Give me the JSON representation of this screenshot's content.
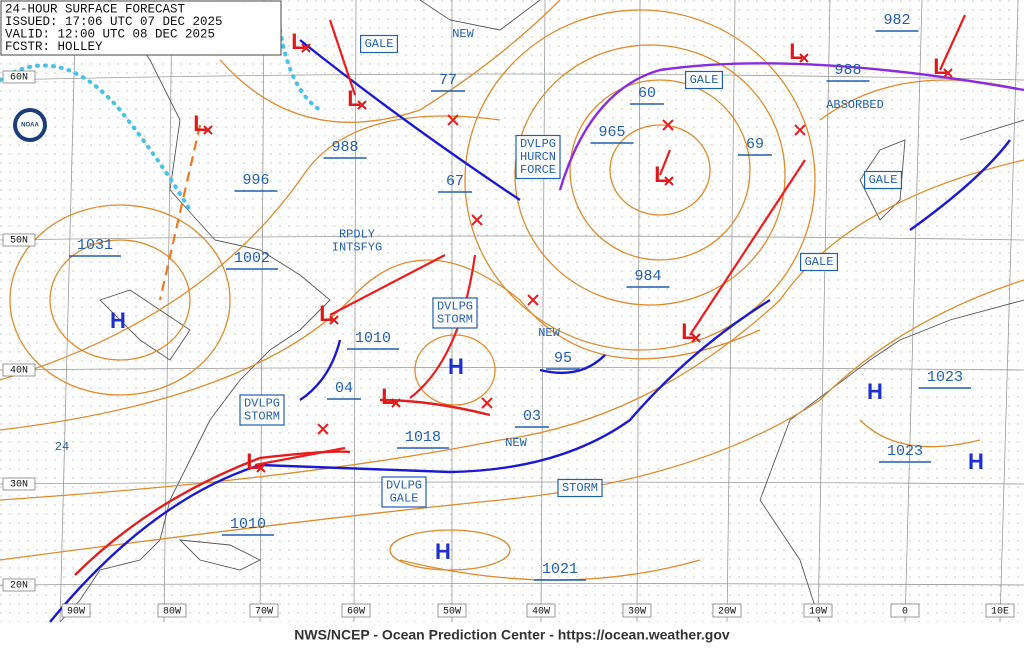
{
  "header": {
    "lines": [
      "24-HOUR SURFACE FORECAST",
      "ISSUED: 17:06 UTC 07 DEC 2025",
      "VALID: 12:00 UTC 08 DEC 2025",
      "FCSTR: HOLLEY"
    ]
  },
  "logo": "NOAA",
  "latitude_labels": [
    "60N",
    "50N",
    "40N",
    "30N",
    "20N"
  ],
  "longitude_labels": [
    "90W",
    "80W",
    "70W",
    "60W",
    "50W",
    "40W",
    "30W",
    "20W",
    "10W",
    "0",
    "10E"
  ],
  "pressure_labels": [
    "77",
    "988",
    "996",
    "1031",
    "1002",
    "67",
    "60",
    "965",
    "69",
    "984",
    "982",
    "988",
    "1010",
    "95",
    "04",
    "03",
    "1018",
    "1023",
    "1023",
    "1010",
    "1021"
  ],
  "boxed_labels": [
    [
      "GALE"
    ],
    [
      "GALE"
    ],
    [
      "DVLPG",
      "HURCN",
      "FORCE"
    ],
    [
      "GALE"
    ],
    [
      "GALE"
    ],
    [
      "DVLPG",
      "STORM"
    ],
    [
      "DVLPG",
      "STORM"
    ],
    [
      "DVLPG",
      "GALE"
    ],
    [
      "STORM"
    ]
  ],
  "plain_labels": [
    [
      "NEW"
    ],
    [
      "ABSORBED"
    ],
    [
      "NEW"
    ],
    [
      "NEW"
    ],
    [
      "RPDLY",
      "INTSFYG"
    ],
    [
      "24"
    ]
  ],
  "highs": [
    "H",
    "H",
    "H",
    "H",
    "H"
  ],
  "lows": [
    "L",
    "L",
    "L",
    "L",
    "L",
    "L",
    "L",
    "L",
    "L",
    "L"
  ],
  "footer": "NWS/NCEP - Ocean Prediction Center - https://ocean.weather.gov"
}
